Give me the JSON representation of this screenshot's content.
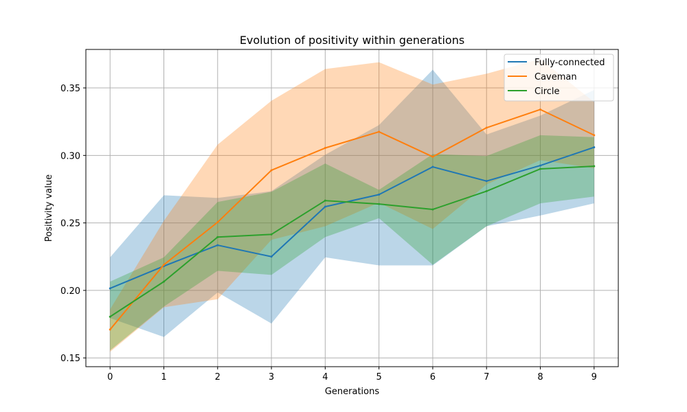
{
  "chart_data": {
    "type": "line",
    "title": "Evolution of positivity within generations",
    "xlabel": "Generations",
    "ylabel": "Positivity value",
    "x": [
      0,
      1,
      2,
      3,
      4,
      5,
      6,
      7,
      8,
      9
    ],
    "xlim": [
      -0.45,
      9.45
    ],
    "ylim": [
      0.1435,
      0.3785
    ],
    "xticks": [
      "0",
      "1",
      "2",
      "3",
      "4",
      "5",
      "6",
      "7",
      "8",
      "9"
    ],
    "yticks": [
      0.15,
      0.2,
      0.25,
      0.3,
      0.35
    ],
    "ytick_labels": [
      "0.15",
      "0.20",
      "0.25",
      "0.30",
      "0.35"
    ],
    "grid": true,
    "legend_position": "top-right",
    "series": [
      {
        "name": "Fully-connected",
        "color": "#1f77b4",
        "values": [
          0.2015,
          0.218,
          0.2335,
          0.225,
          0.262,
          0.271,
          0.2915,
          0.281,
          0.2925,
          0.306
        ],
        "band_upper": [
          0.2245,
          0.2705,
          0.2685,
          0.2735,
          0.3005,
          0.3225,
          0.3635,
          0.3155,
          0.3295,
          0.3485
        ],
        "band_lower": [
          0.1795,
          0.1655,
          0.1985,
          0.1755,
          0.2245,
          0.2185,
          0.2185,
          0.2475,
          0.2555,
          0.2645
        ]
      },
      {
        "name": "Caveman",
        "color": "#ff7f0e",
        "values": [
          0.171,
          0.219,
          0.2505,
          0.289,
          0.3055,
          0.3175,
          0.299,
          0.3205,
          0.334,
          0.315
        ],
        "band_upper": [
          0.186,
          0.2515,
          0.308,
          0.3405,
          0.364,
          0.369,
          0.3525,
          0.3605,
          0.3715,
          0.3395
        ],
        "band_lower": [
          0.1545,
          0.1875,
          0.1935,
          0.2375,
          0.2475,
          0.265,
          0.2455,
          0.2785,
          0.2965,
          0.2905
        ]
      },
      {
        "name": "Circle",
        "color": "#2ca02c",
        "values": [
          0.1805,
          0.2065,
          0.2395,
          0.2415,
          0.2665,
          0.264,
          0.26,
          0.2735,
          0.29,
          0.292
        ],
        "band_upper": [
          0.2065,
          0.2245,
          0.2655,
          0.273,
          0.294,
          0.2745,
          0.301,
          0.2995,
          0.315,
          0.3135
        ],
        "band_lower": [
          0.1555,
          0.188,
          0.2145,
          0.2115,
          0.2395,
          0.2535,
          0.219,
          0.2475,
          0.2645,
          0.2695
        ]
      }
    ]
  }
}
